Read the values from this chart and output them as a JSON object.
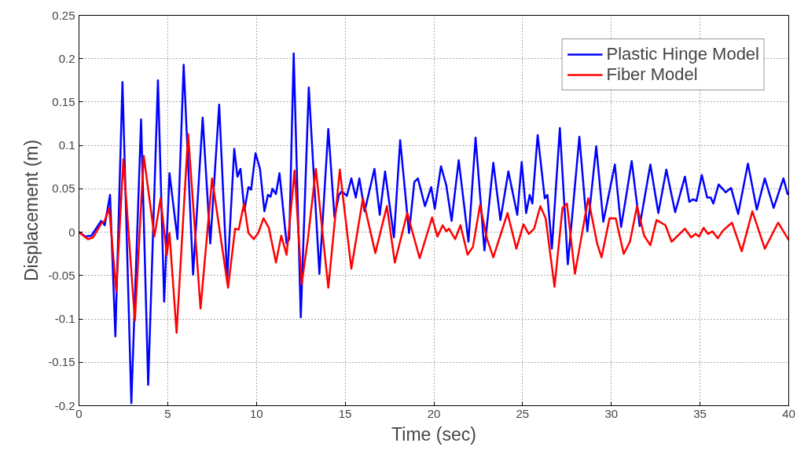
{
  "chart_data": {
    "type": "line",
    "xlabel": "Time (sec)",
    "ylabel": "Displacement (m)",
    "xlim": [
      0,
      40
    ],
    "ylim": [
      -0.2,
      0.25
    ],
    "xticks": [
      0,
      5,
      10,
      15,
      20,
      25,
      30,
      35,
      40
    ],
    "yticks": [
      -0.2,
      -0.15,
      -0.1,
      -0.05,
      0,
      0.05,
      0.1,
      0.15,
      0.2,
      0.25
    ],
    "grid": true,
    "legend": "top right",
    "line_style": "solid",
    "series": [
      {
        "name": "Plastic Hinge Model",
        "color": "#0000ff",
        "x": [
          0,
          0.35,
          0.7,
          1.25,
          1.45,
          1.75,
          2.05,
          2.45,
          2.95,
          3.5,
          3.9,
          4.45,
          4.8,
          5.1,
          5.55,
          5.9,
          6.43,
          6.97,
          7.4,
          7.9,
          8.35,
          8.75,
          8.93,
          9.1,
          9.32,
          9.55,
          9.7,
          9.95,
          10.2,
          10.45,
          10.65,
          10.8,
          10.9,
          11.1,
          11.3,
          11.7,
          11.85,
          12.1,
          12.5,
          12.95,
          13.55,
          14.05,
          14.4,
          14.65,
          14.8,
          15.1,
          15.35,
          15.6,
          15.8,
          16.1,
          16.65,
          16.95,
          17.25,
          17.75,
          18.1,
          18.6,
          18.9,
          19.1,
          19.5,
          19.85,
          20.05,
          20.4,
          20.7,
          21.0,
          21.4,
          21.95,
          22.35,
          22.85,
          23.35,
          23.75,
          24.2,
          24.7,
          24.95,
          25.2,
          25.4,
          25.55,
          25.85,
          26.25,
          26.4,
          26.65,
          27.1,
          27.55,
          28.2,
          28.65,
          29.15,
          29.55,
          30.2,
          30.55,
          30.85,
          31.15,
          31.6,
          32.2,
          32.65,
          33.1,
          33.6,
          34.15,
          34.4,
          34.6,
          34.8,
          35.1,
          35.4,
          35.6,
          35.75,
          36.05,
          36.45,
          36.75,
          37.15,
          37.7,
          38.2,
          38.65,
          39.15,
          39.7,
          39.95
        ],
        "values": [
          0,
          -0.005,
          -0.004,
          0.013,
          0.008,
          0.043,
          -0.12,
          0.173,
          -0.197,
          0.13,
          -0.176,
          0.175,
          -0.08,
          0.068,
          -0.008,
          0.193,
          -0.049,
          0.132,
          -0.013,
          0.147,
          -0.054,
          0.096,
          0.064,
          0.073,
          0.025,
          0.052,
          0.049,
          0.091,
          0.073,
          0.024,
          0.043,
          0.041,
          0.05,
          0.044,
          0.068,
          -0.013,
          -0.008,
          0.206,
          -0.098,
          0.167,
          -0.048,
          0.119,
          0.017,
          0.043,
          0.047,
          0.042,
          0.062,
          0.04,
          0.062,
          0.024,
          0.073,
          0.02,
          0.07,
          -0.006,
          0.106,
          -0.001,
          0.058,
          0.062,
          0.03,
          0.052,
          0.027,
          0.076,
          0.054,
          0.013,
          0.083,
          -0.011,
          0.109,
          -0.021,
          0.08,
          0.014,
          0.07,
          0.02,
          0.081,
          0.022,
          0.043,
          0.033,
          0.112,
          0.039,
          0.043,
          -0.019,
          0.12,
          -0.037,
          0.11,
          0.001,
          0.099,
          0.012,
          0.078,
          0.006,
          0.043,
          0.082,
          0.007,
          0.078,
          0.022,
          0.072,
          0.023,
          0.064,
          0.035,
          0.038,
          0.036,
          0.066,
          0.04,
          0.04,
          0.033,
          0.055,
          0.046,
          0.051,
          0.021,
          0.079,
          0.026,
          0.062,
          0.028,
          0.062,
          0.043
        ]
      },
      {
        "name": "Fiber Model",
        "color": "#ff0000",
        "x": [
          0,
          0.5,
          0.8,
          1.25,
          1.45,
          1.7,
          2.1,
          2.5,
          3.15,
          3.65,
          4.25,
          4.6,
          4.95,
          5.1,
          5.5,
          6.15,
          6.85,
          7.5,
          8.4,
          8.8,
          9.0,
          9.3,
          9.55,
          9.85,
          10.1,
          10.4,
          10.7,
          11.1,
          11.4,
          11.7,
          12.15,
          12.55,
          12.9,
          13.35,
          14.05,
          14.7,
          15.35,
          16.0,
          16.7,
          17.35,
          17.8,
          18.5,
          19.2,
          19.9,
          20.2,
          20.5,
          20.7,
          20.85,
          21.2,
          21.5,
          21.9,
          22.2,
          22.6,
          23.0,
          23.35,
          24.15,
          24.65,
          25.05,
          25.35,
          25.65,
          26.0,
          26.3,
          26.8,
          27.25,
          27.5,
          27.95,
          28.7,
          29.2,
          29.45,
          29.9,
          30.25,
          30.7,
          31.05,
          31.45,
          31.85,
          32.2,
          32.55,
          33.05,
          33.4,
          34.15,
          34.5,
          34.75,
          34.95,
          35.2,
          35.45,
          35.7,
          36.0,
          36.3,
          36.8,
          37.35,
          37.95,
          38.65,
          39.4,
          40.0
        ],
        "values": [
          0,
          -0.008,
          -0.006,
          0.01,
          0.013,
          0.028,
          -0.068,
          0.084,
          -0.102,
          0.088,
          -0.005,
          0.039,
          -0.026,
          -0.001,
          -0.116,
          0.113,
          -0.088,
          0.062,
          -0.064,
          0.004,
          0.003,
          0.033,
          -0.001,
          -0.008,
          -0.001,
          0.016,
          0.005,
          -0.035,
          -0.004,
          -0.026,
          0.071,
          -0.06,
          -0.008,
          0.073,
          -0.064,
          0.072,
          -0.042,
          0.039,
          -0.024,
          0.03,
          -0.035,
          0.022,
          -0.03,
          0.017,
          -0.005,
          0.008,
          0.001,
          0.004,
          -0.008,
          0.008,
          -0.026,
          -0.017,
          0.031,
          -0.008,
          -0.029,
          0.022,
          -0.019,
          0.009,
          -0.002,
          0.004,
          0.03,
          0.016,
          -0.063,
          0.028,
          0.033,
          -0.048,
          0.039,
          -0.013,
          -0.029,
          0.016,
          0.016,
          -0.025,
          -0.011,
          0.03,
          -0.004,
          -0.015,
          0.014,
          0.008,
          -0.011,
          0.004,
          -0.006,
          -0.002,
          -0.005,
          0.005,
          -0.002,
          0.001,
          -0.007,
          0.002,
          0.011,
          -0.022,
          0.024,
          -0.019,
          0.011,
          -0.009
        ]
      }
    ]
  }
}
